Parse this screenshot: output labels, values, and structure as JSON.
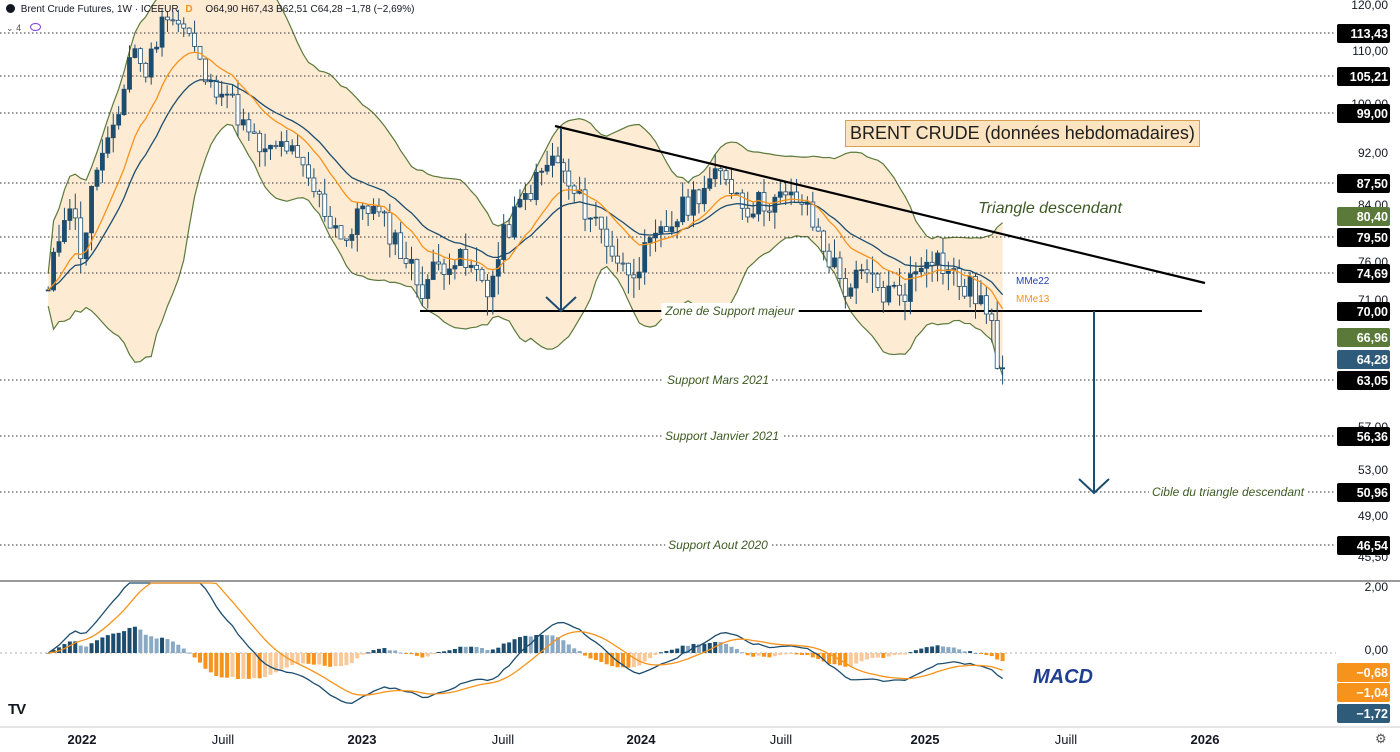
{
  "header": {
    "symbol": "Brent Crude Futures",
    "interval_source": "1W · ICEEUR",
    "d_badge": "D",
    "ohlc": "O64,90 H67,43 B62,51 C64,28 −1,78 (−2,69%)",
    "indicator_count": "4"
  },
  "title_box": "BRENT CRUDE (données hebdomadaires)",
  "chart_data": {
    "type": "candlestick",
    "title": "BRENT CRUDE (données hebdomadaires)",
    "x_axis_labels": [
      "2022",
      "Juill",
      "2023",
      "Juill",
      "2024",
      "Juill",
      "2025",
      "Juill",
      "2026"
    ],
    "y_axis_labels": [
      "120,00",
      "110,00",
      "100,00",
      "92,00",
      "84,00",
      "76,00",
      "71,00",
      "57,00",
      "53,00",
      "49,00",
      "45,50"
    ],
    "price_levels": [
      {
        "value": "113,43",
        "label": ""
      },
      {
        "value": "105,21",
        "label": ""
      },
      {
        "value": "99,00",
        "label": ""
      },
      {
        "value": "87,50",
        "label": ""
      },
      {
        "value": "79,50",
        "label": ""
      },
      {
        "value": "74,69",
        "label": ""
      },
      {
        "value": "70,00",
        "label": "Zone de Support majeur"
      },
      {
        "value": "63,05",
        "label": "Support Mars 2021"
      },
      {
        "value": "56,36",
        "label": "Support Janvier 2021"
      },
      {
        "value": "50,96",
        "label": "Cible du triangle descendant"
      },
      {
        "value": "46,54",
        "label": "Support Aout 2020"
      }
    ],
    "indicator_tags": [
      {
        "value": "80,40",
        "color": "#5b7a3a"
      },
      {
        "value": "66,96",
        "color": "#5b7a3a"
      },
      {
        "value": "64,28",
        "color": "#2e5b7a"
      }
    ],
    "annotations": {
      "triangle": "Triangle descendant",
      "mme22": "MMe22",
      "mme13": "MMe13"
    },
    "last_close": 64.28,
    "series_anchor_points": [
      [
        2021.88,
        72
      ],
      [
        2021.95,
        86
      ],
      [
        2022.0,
        77
      ],
      [
        2022.05,
        90
      ],
      [
        2022.12,
        96
      ],
      [
        2022.18,
        112
      ],
      [
        2022.22,
        105
      ],
      [
        2022.3,
        118
      ],
      [
        2022.38,
        113
      ],
      [
        2022.45,
        103
      ],
      [
        2022.5,
        104
      ],
      [
        2022.58,
        96
      ],
      [
        2022.65,
        92
      ],
      [
        2022.72,
        94
      ],
      [
        2022.8,
        88
      ],
      [
        2022.88,
        82
      ],
      [
        2022.95,
        79
      ],
      [
        2023.0,
        85
      ],
      [
        2023.1,
        80
      ],
      [
        2023.2,
        73
      ],
      [
        2023.3,
        77
      ],
      [
        2023.38,
        75
      ],
      [
        2023.45,
        73
      ],
      [
        2023.5,
        80
      ],
      [
        2023.58,
        86
      ],
      [
        2023.68,
        92
      ],
      [
        2023.72,
        87
      ],
      [
        2023.82,
        82
      ],
      [
        2023.92,
        75
      ],
      [
        2024.0,
        77
      ],
      [
        2024.1,
        82
      ],
      [
        2024.2,
        87
      ],
      [
        2024.28,
        89
      ],
      [
        2024.35,
        84
      ],
      [
        2024.45,
        85
      ],
      [
        2024.55,
        85
      ],
      [
        2024.62,
        79
      ],
      [
        2024.7,
        73
      ],
      [
        2024.78,
        74
      ],
      [
        2024.85,
        72
      ],
      [
        2024.93,
        73
      ],
      [
        2025.0,
        78
      ],
      [
        2025.05,
        76
      ],
      [
        2025.12,
        73
      ],
      [
        2025.18,
        72
      ],
      [
        2025.22,
        68
      ],
      [
        2025.25,
        65
      ],
      [
        2025.27,
        64.28
      ]
    ],
    "macd": {
      "label": "MACD",
      "y_axis_labels": [
        "2,00",
        "0,00"
      ],
      "tags": [
        {
          "value": "−0,68",
          "color": "#f7931a"
        },
        {
          "value": "−1,04",
          "color": "#f7931a"
        },
        {
          "value": "−1,72",
          "color": "#2e5b7a"
        }
      ]
    }
  }
}
